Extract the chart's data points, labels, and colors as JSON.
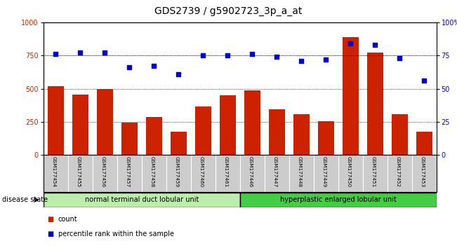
{
  "title": "GDS2739 / g5902723_3p_a_at",
  "categories": [
    "GSM177454",
    "GSM177455",
    "GSM177456",
    "GSM177457",
    "GSM177458",
    "GSM177459",
    "GSM177460",
    "GSM177461",
    "GSM177446",
    "GSM177447",
    "GSM177448",
    "GSM177449",
    "GSM177450",
    "GSM177451",
    "GSM177452",
    "GSM177453"
  ],
  "bar_values": [
    520,
    455,
    500,
    245,
    285,
    175,
    365,
    450,
    485,
    345,
    305,
    255,
    890,
    770,
    305,
    175
  ],
  "dot_values": [
    76,
    77,
    77,
    66,
    67,
    61,
    75,
    75,
    76,
    74,
    71,
    72,
    84,
    83,
    73,
    56
  ],
  "bar_color": "#cc2200",
  "dot_color": "#0000cc",
  "ylim_left": [
    0,
    1000
  ],
  "ylim_right": [
    0,
    100
  ],
  "yticks_left": [
    0,
    250,
    500,
    750,
    1000
  ],
  "yticks_right": [
    0,
    25,
    50,
    75,
    100
  ],
  "yticklabels_right": [
    "0",
    "25",
    "50",
    "75",
    "100%"
  ],
  "group1_label": "normal terminal duct lobular unit",
  "group2_label": "hyperplastic enlarged lobular unit",
  "group1_count": 8,
  "group2_count": 8,
  "disease_state_label": "disease state",
  "legend_count_label": "count",
  "legend_percentile_label": "percentile rank within the sample",
  "group1_color": "#bbeeaa",
  "group2_color": "#44cc44",
  "background_color": "#ffffff",
  "tick_area_color": "#cccccc",
  "title_fontsize": 10,
  "axis_fontsize": 7,
  "label_fontsize": 7
}
